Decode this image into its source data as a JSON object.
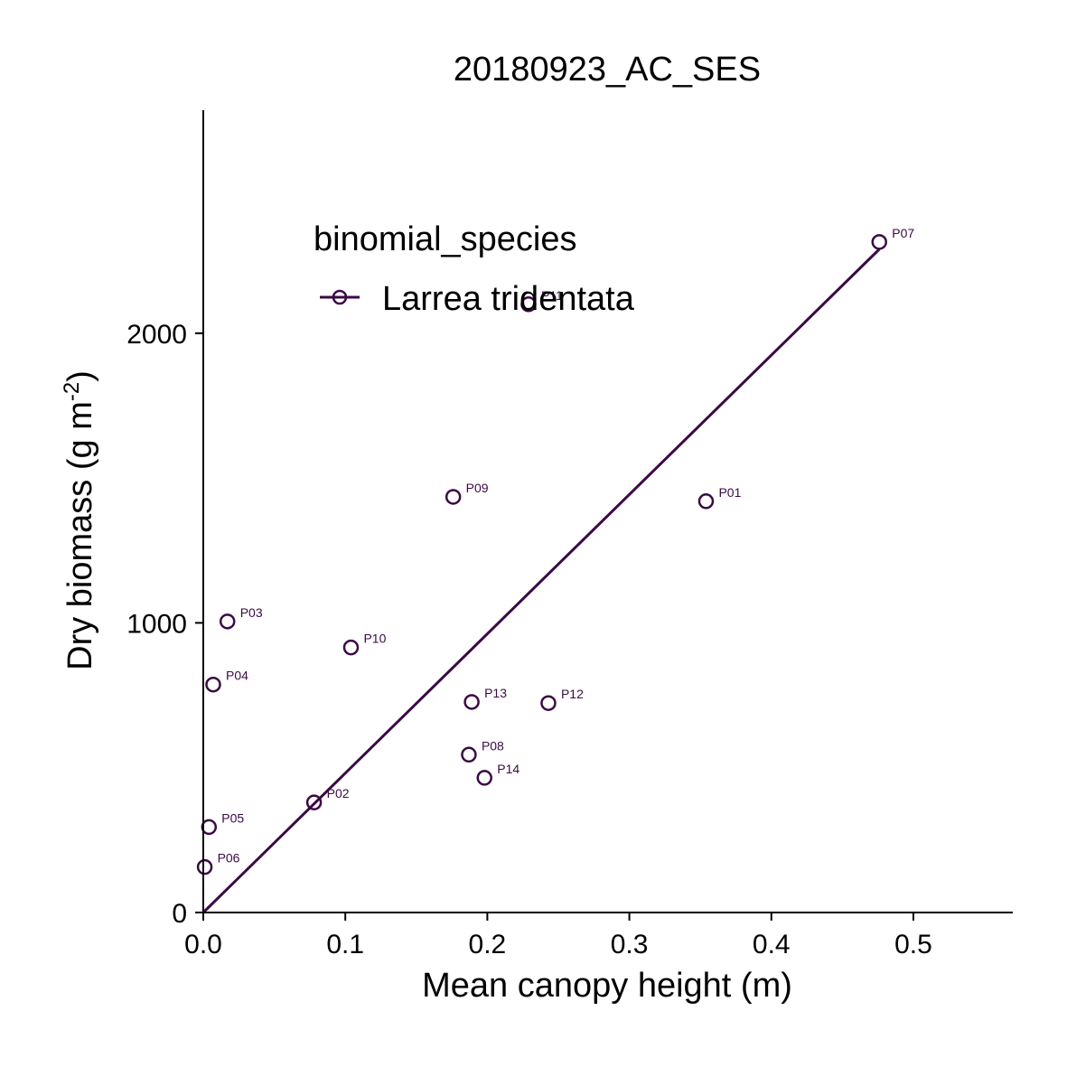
{
  "chart_data": {
    "type": "scatter",
    "title": "20180923_AC_SES",
    "xlabel": "Mean canopy height (m)",
    "ylabel_main": "Dry biomass (g m",
    "ylabel_sup": "-2",
    "ylabel_end": ")",
    "xlim": [
      0,
      0.57
    ],
    "ylim": [
      0,
      2770
    ],
    "xticks": [
      0.0,
      0.1,
      0.2,
      0.3,
      0.4,
      0.5
    ],
    "xtick_labels": [
      "0.0",
      "0.1",
      "0.2",
      "0.3",
      "0.4",
      "0.5"
    ],
    "yticks": [
      0,
      1000,
      2000
    ],
    "ytick_labels": [
      "0",
      "1000",
      "2000"
    ],
    "grid": false,
    "legend": {
      "title": "binomial_species",
      "placement": "top-left-inside",
      "entries": [
        "Larrea tridentata"
      ]
    },
    "series": [
      {
        "name": "Larrea tridentata",
        "color": "#3b0a45",
        "points": [
          {
            "label": "P01",
            "x": 0.354,
            "y": 1420
          },
          {
            "label": "P02",
            "x": 0.078,
            "y": 380
          },
          {
            "label": "P03",
            "x": 0.017,
            "y": 1005
          },
          {
            "label": "P04",
            "x": 0.007,
            "y": 787
          },
          {
            "label": "P05",
            "x": 0.004,
            "y": 295
          },
          {
            "label": "P06",
            "x": 0.001,
            "y": 157
          },
          {
            "label": "P07",
            "x": 0.476,
            "y": 2315
          },
          {
            "label": "P08",
            "x": 0.187,
            "y": 545
          },
          {
            "label": "P09",
            "x": 0.176,
            "y": 1435
          },
          {
            "label": "P10",
            "x": 0.104,
            "y": 915
          },
          {
            "label": "P11",
            "x": 0.229,
            "y": 2100
          },
          {
            "label": "P12",
            "x": 0.243,
            "y": 723
          },
          {
            "label": "P13",
            "x": 0.189,
            "y": 727
          },
          {
            "label": "P14",
            "x": 0.198,
            "y": 465
          }
        ],
        "fit_line": {
          "x": [
            0.0,
            0.476
          ],
          "y": [
            0,
            2290
          ]
        }
      }
    ]
  }
}
